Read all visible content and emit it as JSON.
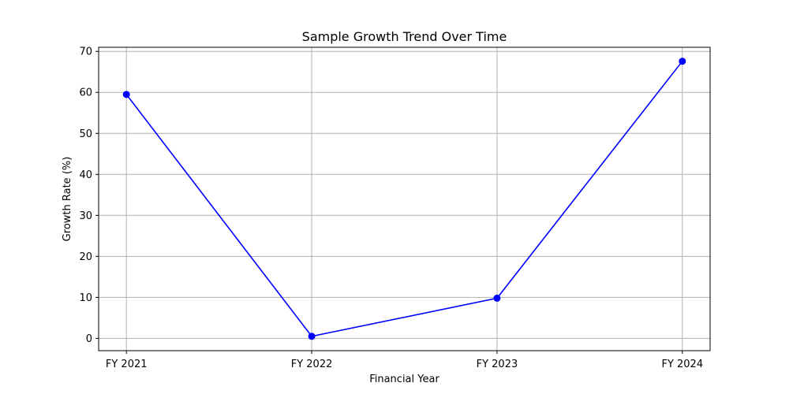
{
  "chart_data": {
    "type": "line",
    "title": "Sample Growth Trend Over Time",
    "xlabel": "Financial Year",
    "ylabel": "Growth Rate (%)",
    "categories": [
      "FY 2021",
      "FY 2022",
      "FY 2023",
      "FY 2024"
    ],
    "series": [
      {
        "values": [
          59.5,
          0.5,
          9.8,
          67.6
        ],
        "color": "#0000ff",
        "marker": "circle"
      }
    ],
    "ylim": [
      -3,
      71
    ],
    "yticks": [
      0,
      10,
      20,
      30,
      40,
      50,
      60,
      70
    ],
    "ytick_labels": [
      "0",
      "10",
      "20",
      "30",
      "40",
      "50",
      "60",
      "70"
    ],
    "grid": true,
    "grid_color": "#b0b0b0",
    "axis_color": "#000000",
    "background": "#ffffff"
  }
}
